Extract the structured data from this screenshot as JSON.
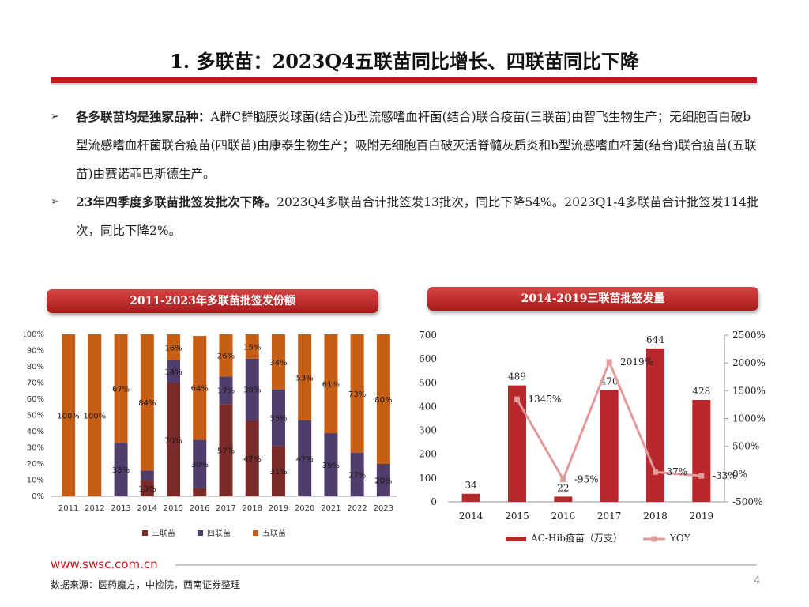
{
  "slide": {
    "title": "1. 多联苗：2023Q4五联苗同比增长、四联苗同比下降",
    "bullets": [
      {
        "bold": "各多联苗均是独家品种：",
        "text": "A群C群脑膜炎球菌(结合)b型流感嗜血杆菌(结合)联合疫苗(三联苗)由智飞生物生产；无细胞百白破b型流感嗜血杆菌联合疫苗(四联苗)由康泰生物生产；吸附无细胞百白破灭活脊髓灰质炎和b型流感嗜血杆菌(结合)联合疫苗(五联苗)由赛诺菲巴斯德生产。"
      },
      {
        "bold": "23年四季度多联苗批签发批次下降。",
        "text": "2023Q4多联苗合计批签发13批次，同比下降54%。2023Q1-4多联苗合计批签发114批次，同比下降2%。"
      }
    ],
    "chart_left_title": "2011-2023年多联苗批签发份额",
    "chart_right_title": "2014-2019三联苗批签发量",
    "footer_url": "www.swsc.com.cn",
    "footer_source": "数据来源：医药魔方，中检院，西南证券整理",
    "page_number": "4"
  },
  "chart_data": [
    {
      "type": "bar",
      "stacked": true,
      "title": "2011-2023年多联苗批签发份额",
      "categories": [
        "2011",
        "2012",
        "2013",
        "2014",
        "2015",
        "2016",
        "2017",
        "2018",
        "2019",
        "2020",
        "2021",
        "2022",
        "2023"
      ],
      "y_ticks": [
        "0%",
        "10%",
        "20%",
        "30%",
        "40%",
        "50%",
        "60%",
        "70%",
        "80%",
        "90%",
        "100%"
      ],
      "ylim": [
        0,
        100
      ],
      "legend_position": "bottom",
      "series": [
        {
          "name": "三联苗",
          "color": "#7b2a2a",
          "values": [
            0,
            0,
            0,
            10,
            70,
            5,
            57,
            47,
            31,
            0,
            0,
            0,
            0
          ],
          "labels": [
            "",
            "",
            "",
            "10%",
            "70%",
            "5%",
            "57%",
            "47%",
            "31%",
            "",
            "",
            "",
            ""
          ]
        },
        {
          "name": "四联苗",
          "color": "#4f3d6b",
          "values": [
            0,
            0,
            33,
            6,
            14,
            30,
            17,
            38,
            35,
            47,
            39,
            27,
            20
          ],
          "labels": [
            "",
            "",
            "33%",
            "6%",
            "14%",
            "30%",
            "17%",
            "38%",
            "35%",
            "47%",
            "39%",
            "27%",
            "20%"
          ]
        },
        {
          "name": "五联苗",
          "color": "#c65e16",
          "values": [
            100,
            100,
            67,
            84,
            16,
            64,
            26,
            15,
            34,
            53,
            61,
            73,
            80
          ],
          "labels": [
            "100%",
            "100%",
            "67%",
            "84%",
            "16%",
            "64%",
            "26%",
            "15%",
            "34%",
            "53%",
            "61%",
            "73%",
            "80%"
          ]
        }
      ]
    },
    {
      "type": "bar+line",
      "title": "2014-2019三联苗批签发量",
      "categories": [
        "2014",
        "2015",
        "2016",
        "2017",
        "2018",
        "2019"
      ],
      "left_ylim": [
        0,
        700
      ],
      "left_ticks": [
        "0",
        "100",
        "200",
        "300",
        "400",
        "500",
        "600",
        "700"
      ],
      "right_ylim": [
        -500,
        2500
      ],
      "right_ticks": [
        "-500%",
        "0%",
        "500%",
        "1000%",
        "1500%",
        "2000%",
        "2500%"
      ],
      "legend_position": "bottom",
      "series": [
        {
          "name": "AC-Hib疫苗（万支）",
          "kind": "bar",
          "axis": "left",
          "color": "#b8272c",
          "values": [
            34,
            489,
            22,
            470,
            644,
            428
          ],
          "labels": [
            "34",
            "489",
            "22",
            "470",
            "644",
            "428"
          ]
        },
        {
          "name": "YOY",
          "kind": "line",
          "axis": "right",
          "color": "#e39a9a",
          "values": [
            null,
            1345,
            -95,
            2019,
            37,
            -33
          ],
          "labels": [
            "",
            "1345%",
            "-95%",
            "2019%",
            "37%",
            "-33%"
          ]
        }
      ]
    }
  ]
}
